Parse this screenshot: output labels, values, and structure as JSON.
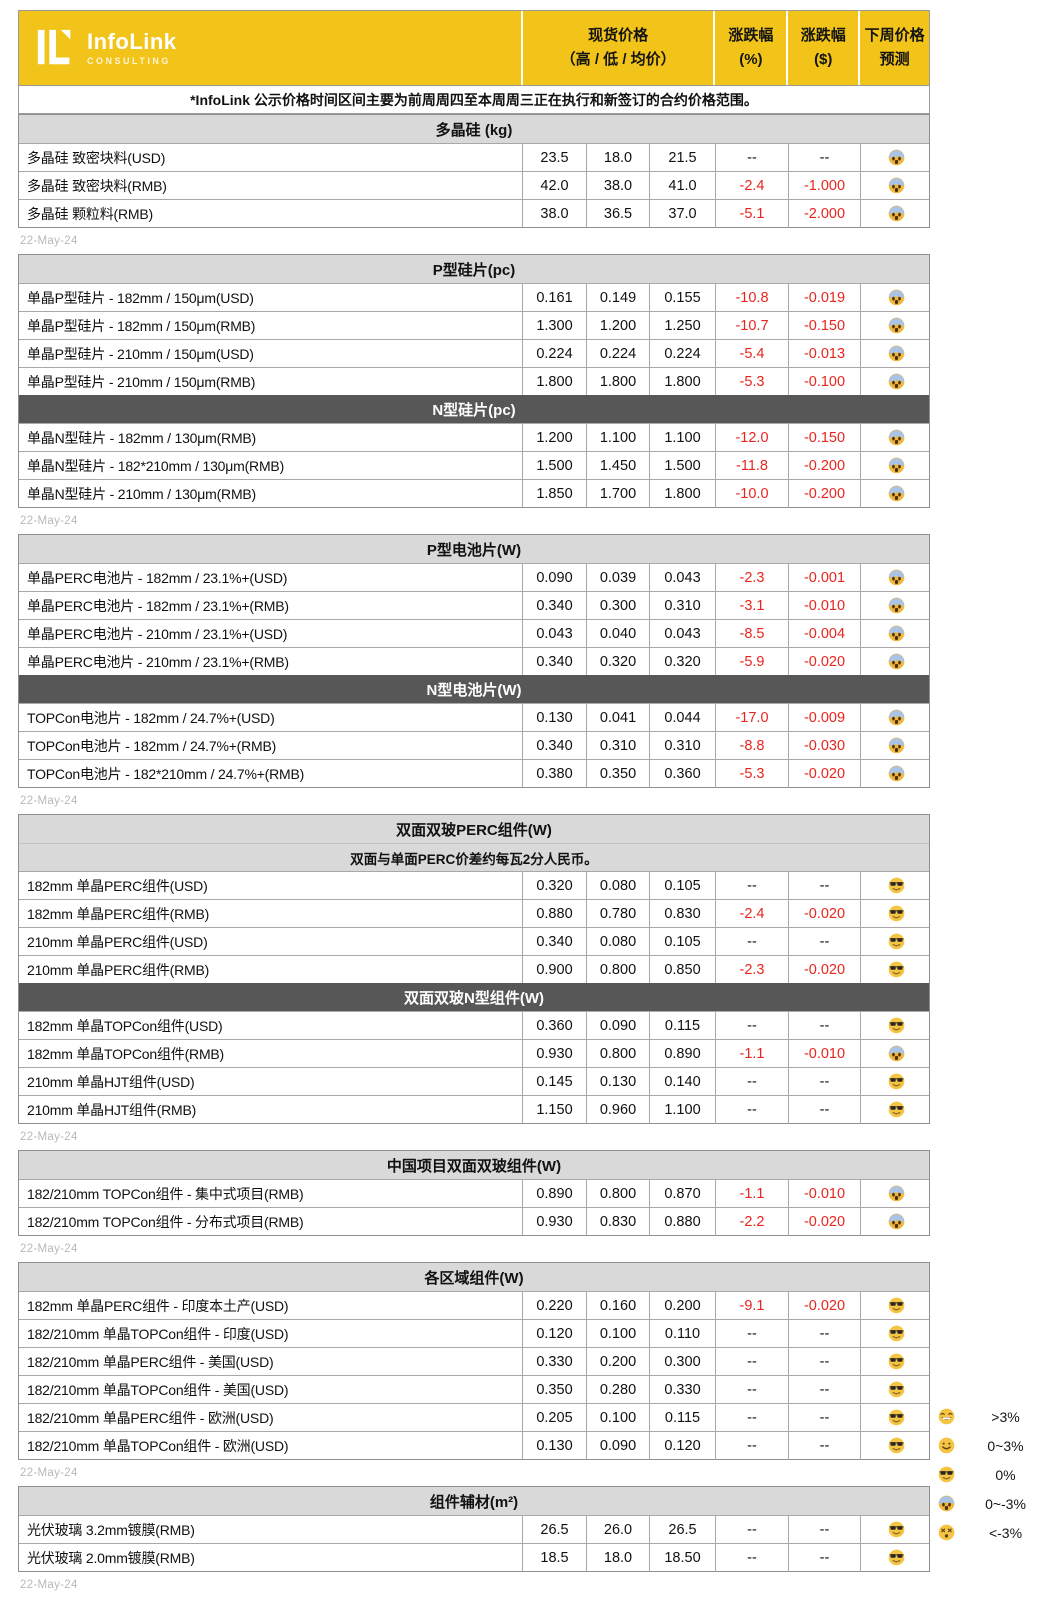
{
  "brand": {
    "name": "InfoLink",
    "tagline": "CONSULTING"
  },
  "table_header": {
    "spot_price_line1": "现货价格",
    "spot_price_line2": "（高 / 低 / 均价）",
    "change_pct_line1": "涨跌幅",
    "change_pct_line2": "(%)",
    "change_usd_line1": "涨跌幅",
    "change_usd_line2": "($)",
    "forecast_line1": "下周价格",
    "forecast_line2": "预测"
  },
  "disclaimer": "*InfoLink 公示价格时间区间主要为前周周四至本周周三正在执行和新签订的合约价格范围。",
  "date_stamp": "22-May-24",
  "colors": {
    "brand_yellow": "#F2C318",
    "section_light": "#D9D9D9",
    "section_dark": "#575757",
    "negative_red": "#E8251E"
  },
  "emoji_legend": [
    {
      "emoji": "grin",
      "label": ">3%"
    },
    {
      "emoji": "smile",
      "label": "0~3%"
    },
    {
      "emoji": "cool",
      "label": "0%"
    },
    {
      "emoji": "scream",
      "label": "0~-3%"
    },
    {
      "emoji": "dizzy",
      "label": "<-3%"
    }
  ],
  "blocks": [
    {
      "sections": [
        {
          "title": "多晶硅 (kg)",
          "theme": "light",
          "rows": [
            {
              "name": "多晶硅 致密块料(USD)",
              "high": "23.5",
              "low": "18.0",
              "avg": "21.5",
              "change_pct": "--",
              "change_usd": "--",
              "forecast": "scream"
            },
            {
              "name": "多晶硅 致密块料(RMB)",
              "high": "42.0",
              "low": "38.0",
              "avg": "41.0",
              "change_pct": "-2.4",
              "change_usd": "-1.000",
              "forecast": "scream"
            },
            {
              "name": "多晶硅 颗粒料(RMB)",
              "high": "38.0",
              "low": "36.5",
              "avg": "37.0",
              "change_pct": "-5.1",
              "change_usd": "-2.000",
              "forecast": "scream"
            }
          ]
        }
      ]
    },
    {
      "sections": [
        {
          "title": "P型硅片(pc)",
          "theme": "light",
          "rows": [
            {
              "name": "单晶P型硅片 - 182mm / 150μm(USD)",
              "high": "0.161",
              "low": "0.149",
              "avg": "0.155",
              "change_pct": "-10.8",
              "change_usd": "-0.019",
              "forecast": "scream"
            },
            {
              "name": "单晶P型硅片 - 182mm / 150μm(RMB)",
              "high": "1.300",
              "low": "1.200",
              "avg": "1.250",
              "change_pct": "-10.7",
              "change_usd": "-0.150",
              "forecast": "scream"
            },
            {
              "name": "单晶P型硅片 - 210mm / 150μm(USD)",
              "high": "0.224",
              "low": "0.224",
              "avg": "0.224",
              "change_pct": "-5.4",
              "change_usd": "-0.013",
              "forecast": "scream"
            },
            {
              "name": "单晶P型硅片 - 210mm / 150μm(RMB)",
              "high": "1.800",
              "low": "1.800",
              "avg": "1.800",
              "change_pct": "-5.3",
              "change_usd": "-0.100",
              "forecast": "scream"
            }
          ]
        },
        {
          "title": "N型硅片(pc)",
          "theme": "dark",
          "rows": [
            {
              "name": "单晶N型硅片 - 182mm / 130μm(RMB)",
              "high": "1.200",
              "low": "1.100",
              "avg": "1.100",
              "change_pct": "-12.0",
              "change_usd": "-0.150",
              "forecast": "scream"
            },
            {
              "name": "单晶N型硅片 - 182*210mm / 130μm(RMB)",
              "high": "1.500",
              "low": "1.450",
              "avg": "1.500",
              "change_pct": "-11.8",
              "change_usd": "-0.200",
              "forecast": "scream"
            },
            {
              "name": "单晶N型硅片 - 210mm / 130μm(RMB)",
              "high": "1.850",
              "low": "1.700",
              "avg": "1.800",
              "change_pct": "-10.0",
              "change_usd": "-0.200",
              "forecast": "scream"
            }
          ]
        }
      ]
    },
    {
      "sections": [
        {
          "title": "P型电池片(W)",
          "theme": "light",
          "rows": [
            {
              "name": "单晶PERC电池片 - 182mm / 23.1%+(USD)",
              "high": "0.090",
              "low": "0.039",
              "avg": "0.043",
              "change_pct": "-2.3",
              "change_usd": "-0.001",
              "forecast": "scream"
            },
            {
              "name": "单晶PERC电池片 - 182mm / 23.1%+(RMB)",
              "high": "0.340",
              "low": "0.300",
              "avg": "0.310",
              "change_pct": "-3.1",
              "change_usd": "-0.010",
              "forecast": "scream"
            },
            {
              "name": "单晶PERC电池片 - 210mm / 23.1%+(USD)",
              "high": "0.043",
              "low": "0.040",
              "avg": "0.043",
              "change_pct": "-8.5",
              "change_usd": "-0.004",
              "forecast": "scream"
            },
            {
              "name": "单晶PERC电池片 - 210mm / 23.1%+(RMB)",
              "high": "0.340",
              "low": "0.320",
              "avg": "0.320",
              "change_pct": "-5.9",
              "change_usd": "-0.020",
              "forecast": "scream"
            }
          ]
        },
        {
          "title": "N型电池片(W)",
          "theme": "dark",
          "rows": [
            {
              "name": "TOPCon电池片 - 182mm / 24.7%+(USD)",
              "high": "0.130",
              "low": "0.041",
              "avg": "0.044",
              "change_pct": "-17.0",
              "change_usd": "-0.009",
              "forecast": "scream"
            },
            {
              "name": "TOPCon电池片 - 182mm / 24.7%+(RMB)",
              "high": "0.340",
              "low": "0.310",
              "avg": "0.310",
              "change_pct": "-8.8",
              "change_usd": "-0.030",
              "forecast": "scream"
            },
            {
              "name": "TOPCon电池片 - 182*210mm / 24.7%+(RMB)",
              "high": "0.380",
              "low": "0.350",
              "avg": "0.360",
              "change_pct": "-5.3",
              "change_usd": "-0.020",
              "forecast": "scream"
            }
          ]
        }
      ]
    },
    {
      "sections": [
        {
          "title": "双面双玻PERC组件(W)",
          "theme": "light",
          "note": "双面与单面PERC价差约每瓦2分人民币。",
          "rows": [
            {
              "name": "182mm 单晶PERC组件(USD)",
              "high": "0.320",
              "low": "0.080",
              "avg": "0.105",
              "change_pct": "--",
              "change_usd": "--",
              "forecast": "cool"
            },
            {
              "name": "182mm 单晶PERC组件(RMB)",
              "high": "0.880",
              "low": "0.780",
              "avg": "0.830",
              "change_pct": "-2.4",
              "change_usd": "-0.020",
              "forecast": "cool"
            },
            {
              "name": "210mm 单晶PERC组件(USD)",
              "high": "0.340",
              "low": "0.080",
              "avg": "0.105",
              "change_pct": "--",
              "change_usd": "--",
              "forecast": "cool"
            },
            {
              "name": "210mm 单晶PERC组件(RMB)",
              "high": "0.900",
              "low": "0.800",
              "avg": "0.850",
              "change_pct": "-2.3",
              "change_usd": "-0.020",
              "forecast": "cool"
            }
          ]
        },
        {
          "title": "双面双玻N型组件(W)",
          "theme": "dark",
          "rows": [
            {
              "name": "182mm 单晶TOPCon组件(USD)",
              "high": "0.360",
              "low": "0.090",
              "avg": "0.115",
              "change_pct": "--",
              "change_usd": "--",
              "forecast": "cool"
            },
            {
              "name": "182mm 单晶TOPCon组件(RMB)",
              "high": "0.930",
              "low": "0.800",
              "avg": "0.890",
              "change_pct": "-1.1",
              "change_usd": "-0.010",
              "forecast": "scream"
            },
            {
              "name": "210mm 单晶HJT组件(USD)",
              "high": "0.145",
              "low": "0.130",
              "avg": "0.140",
              "change_pct": "--",
              "change_usd": "--",
              "forecast": "cool"
            },
            {
              "name": "210mm 单晶HJT组件(RMB)",
              "high": "1.150",
              "low": "0.960",
              "avg": "1.100",
              "change_pct": "--",
              "change_usd": "--",
              "forecast": "cool"
            }
          ]
        }
      ]
    },
    {
      "sections": [
        {
          "title": "中国项目双面双玻组件(W)",
          "theme": "light",
          "rows": [
            {
              "name": "182/210mm TOPCon组件 - 集中式项目(RMB)",
              "high": "0.890",
              "low": "0.800",
              "avg": "0.870",
              "change_pct": "-1.1",
              "change_usd": "-0.010",
              "forecast": "scream"
            },
            {
              "name": "182/210mm TOPCon组件 - 分布式项目(RMB)",
              "high": "0.930",
              "low": "0.830",
              "avg": "0.880",
              "change_pct": "-2.2",
              "change_usd": "-0.020",
              "forecast": "scream"
            }
          ]
        }
      ]
    },
    {
      "sections": [
        {
          "title": "各区域组件(W)",
          "theme": "light",
          "rows": [
            {
              "name": "182mm 单晶PERC组件 - 印度本土产(USD)",
              "high": "0.220",
              "low": "0.160",
              "avg": "0.200",
              "change_pct": "-9.1",
              "change_usd": "-0.020",
              "forecast": "cool"
            },
            {
              "name": "182/210mm 单晶TOPCon组件 - 印度(USD)",
              "high": "0.120",
              "low": "0.100",
              "avg": "0.110",
              "change_pct": "--",
              "change_usd": "--",
              "forecast": "cool"
            },
            {
              "name": "182/210mm 单晶PERC组件 - 美国(USD)",
              "high": "0.330",
              "low": "0.200",
              "avg": "0.300",
              "change_pct": "--",
              "change_usd": "--",
              "forecast": "cool"
            },
            {
              "name": "182/210mm 单晶TOPCon组件 - 美国(USD)",
              "high": "0.350",
              "low": "0.280",
              "avg": "0.330",
              "change_pct": "--",
              "change_usd": "--",
              "forecast": "cool"
            },
            {
              "name": "182/210mm 单晶PERC组件 - 欧洲(USD)",
              "high": "0.205",
              "low": "0.100",
              "avg": "0.115",
              "change_pct": "--",
              "change_usd": "--",
              "forecast": "cool"
            },
            {
              "name": "182/210mm 单晶TOPCon组件 - 欧洲(USD)",
              "high": "0.130",
              "low": "0.090",
              "avg": "0.120",
              "change_pct": "--",
              "change_usd": "--",
              "forecast": "cool"
            }
          ]
        }
      ]
    },
    {
      "sections": [
        {
          "title": "组件辅材(m²)",
          "theme": "light",
          "rows": [
            {
              "name": "光伏玻璃 3.2mm镀膜(RMB)",
              "high": "26.5",
              "low": "26.0",
              "avg": "26.5",
              "change_pct": "--",
              "change_usd": "--",
              "forecast": "cool"
            },
            {
              "name": "光伏玻璃 2.0mm镀膜(RMB)",
              "high": "18.5",
              "low": "18.0",
              "avg": "18.50",
              "change_pct": "--",
              "change_usd": "--",
              "forecast": "cool"
            }
          ]
        }
      ]
    }
  ]
}
